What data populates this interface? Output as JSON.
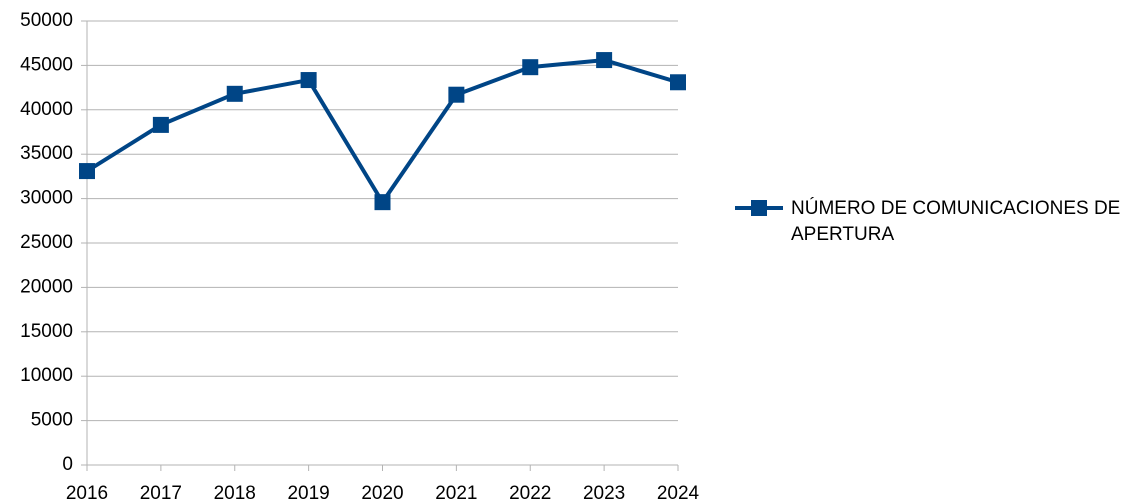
{
  "chart_data": {
    "type": "line",
    "x": [
      2016,
      2017,
      2018,
      2019,
      2020,
      2021,
      2022,
      2023,
      2024
    ],
    "xlim": [
      2016,
      2024
    ],
    "xticks": [
      2016,
      2017,
      2018,
      2019,
      2020,
      2021,
      2022,
      2023,
      2024
    ],
    "ylim": [
      0,
      50000
    ],
    "yticks": [
      0,
      5000,
      10000,
      15000,
      20000,
      25000,
      30000,
      35000,
      40000,
      45000,
      50000
    ],
    "grid": true,
    "legend": "right",
    "series": [
      {
        "name": "NÚMERO DE COMUNICACIONES DE APERTURA",
        "color": "#004586",
        "values": [
          33100,
          38300,
          41800,
          43350,
          29600,
          41700,
          44800,
          45600,
          43100
        ]
      }
    ]
  }
}
